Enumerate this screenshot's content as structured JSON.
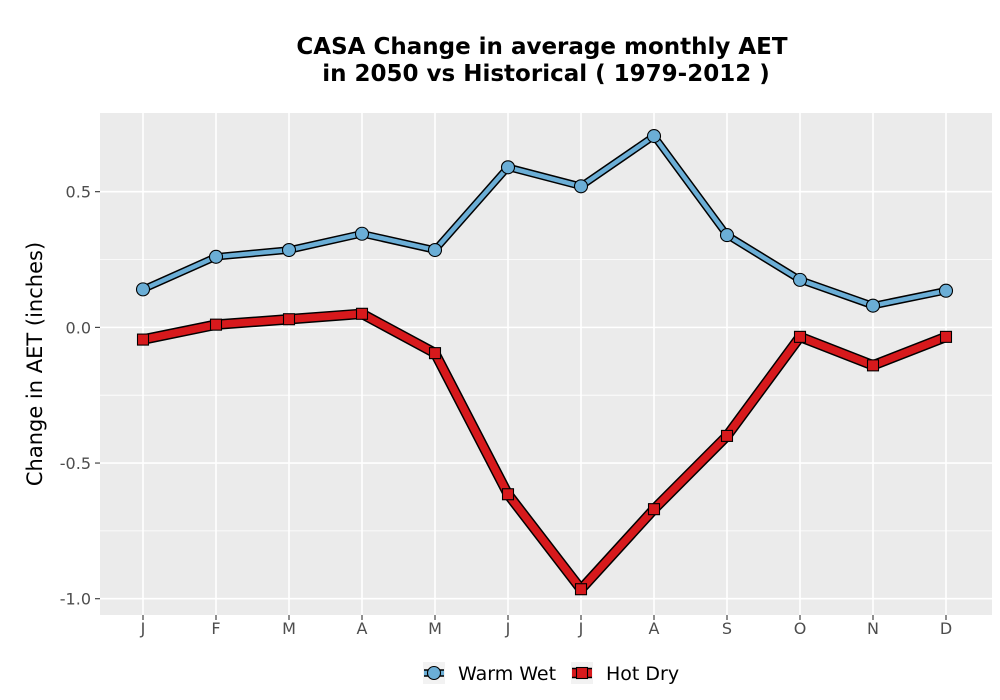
{
  "chart_data": {
    "type": "line",
    "title": [
      "CASA  Change in average monthly AET",
      "in 2050 vs Historical ( 1979-2012 )"
    ],
    "xlabel": "",
    "ylabel": "Change in AET (inches)",
    "categories": [
      "J",
      "F",
      "M",
      "A",
      "M",
      "J",
      "J",
      "A",
      "S",
      "O",
      "N",
      "D"
    ],
    "y_ticks": [
      -1.0,
      -0.5,
      0.0,
      0.5
    ],
    "y_tick_labels": [
      "-1.0",
      "-0.5",
      "0.0",
      "0.5"
    ],
    "ylim": [
      -1.06,
      0.79
    ],
    "grid": true,
    "legend_position": "bottom",
    "series": [
      {
        "name": "Warm Wet",
        "values": [
          0.14,
          0.26,
          0.285,
          0.345,
          0.285,
          0.59,
          0.52,
          0.705,
          0.34,
          0.175,
          0.08,
          0.135
        ],
        "color": "#6baed6",
        "marker": "circle"
      },
      {
        "name": "Hot Dry",
        "values": [
          -0.045,
          0.01,
          0.03,
          0.05,
          -0.095,
          -0.615,
          -0.965,
          -0.67,
          -0.4,
          -0.035,
          -0.14,
          -0.035
        ],
        "color": "#d7191c",
        "marker": "square"
      }
    ]
  }
}
